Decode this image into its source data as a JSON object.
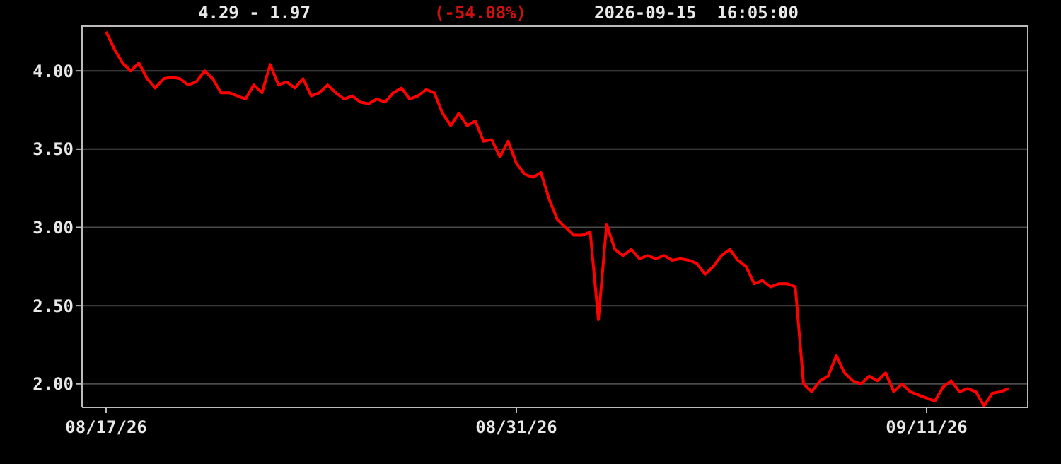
{
  "chart_data": {
    "type": "line",
    "title": "4.29 - 1.97",
    "subtitle": "(-54.08%)",
    "annotations": [
      "2026-09-15  16:05:00"
    ],
    "ylim": [
      1.85,
      4.29
    ],
    "categories": [
      "08/17/26",
      null,
      null,
      null,
      null,
      null,
      null,
      null,
      null,
      null,
      null,
      null,
      null,
      null,
      null,
      null,
      null,
      null,
      null,
      null,
      null,
      null,
      null,
      null,
      null,
      null,
      null,
      null,
      null,
      null,
      null,
      null,
      null,
      null,
      null,
      null,
      null,
      null,
      null,
      null,
      null,
      null,
      null,
      null,
      null,
      null,
      null,
      null,
      null,
      null,
      "08/31/26",
      null,
      null,
      null,
      null,
      null,
      null,
      null,
      null,
      null,
      null,
      null,
      null,
      null,
      null,
      null,
      null,
      null,
      null,
      null,
      null,
      null,
      null,
      null,
      null,
      null,
      null,
      null,
      null,
      null,
      null,
      null,
      null,
      null,
      null,
      null,
      null,
      null,
      null,
      null,
      null,
      null,
      null,
      null,
      null,
      null,
      null,
      null,
      null,
      null,
      "09/11/26",
      null,
      null,
      null,
      null,
      null,
      null,
      null,
      null,
      null,
      null
    ],
    "yticks": [
      {
        "value": 2,
        "label": "2.00"
      },
      {
        "value": 2.5,
        "label": "2.50"
      },
      {
        "value": 3,
        "label": "3.00"
      },
      {
        "value": 3.5,
        "label": "3.50"
      },
      {
        "value": 4,
        "label": "4.00"
      }
    ],
    "grid": "y",
    "marker": "none",
    "line_style": "solid",
    "series": [
      {
        "color": "#ff0000",
        "values": [
          4.25,
          4.14,
          4.05,
          4.0,
          4.05,
          3.95,
          3.89,
          3.95,
          3.96,
          3.95,
          3.91,
          3.93,
          4.0,
          3.95,
          3.86,
          3.86,
          3.84,
          3.82,
          3.91,
          3.86,
          4.04,
          3.91,
          3.93,
          3.89,
          3.95,
          3.84,
          3.86,
          3.91,
          3.86,
          3.82,
          3.84,
          3.8,
          3.79,
          3.82,
          3.8,
          3.86,
          3.89,
          3.82,
          3.84,
          3.88,
          3.86,
          3.73,
          3.65,
          3.73,
          3.65,
          3.68,
          3.55,
          3.56,
          3.45,
          3.55,
          3.41,
          3.34,
          3.32,
          3.35,
          3.18,
          3.05,
          3.0,
          2.95,
          2.95,
          2.97,
          2.41,
          3.02,
          2.86,
          2.82,
          2.86,
          2.8,
          2.82,
          2.8,
          2.82,
          2.79,
          2.8,
          2.79,
          2.77,
          2.7,
          2.75,
          2.82,
          2.86,
          2.79,
          2.75,
          2.64,
          2.66,
          2.62,
          2.64,
          2.64,
          2.62,
          2.0,
          1.95,
          2.02,
          2.05,
          2.18,
          2.07,
          2.02,
          2.0,
          2.05,
          2.02,
          2.07,
          1.95,
          2.0,
          1.95,
          1.93,
          1.91,
          1.89,
          1.98,
          2.02,
          1.95,
          1.97,
          1.95,
          1.86,
          1.94,
          1.95,
          1.97
        ]
      }
    ]
  }
}
